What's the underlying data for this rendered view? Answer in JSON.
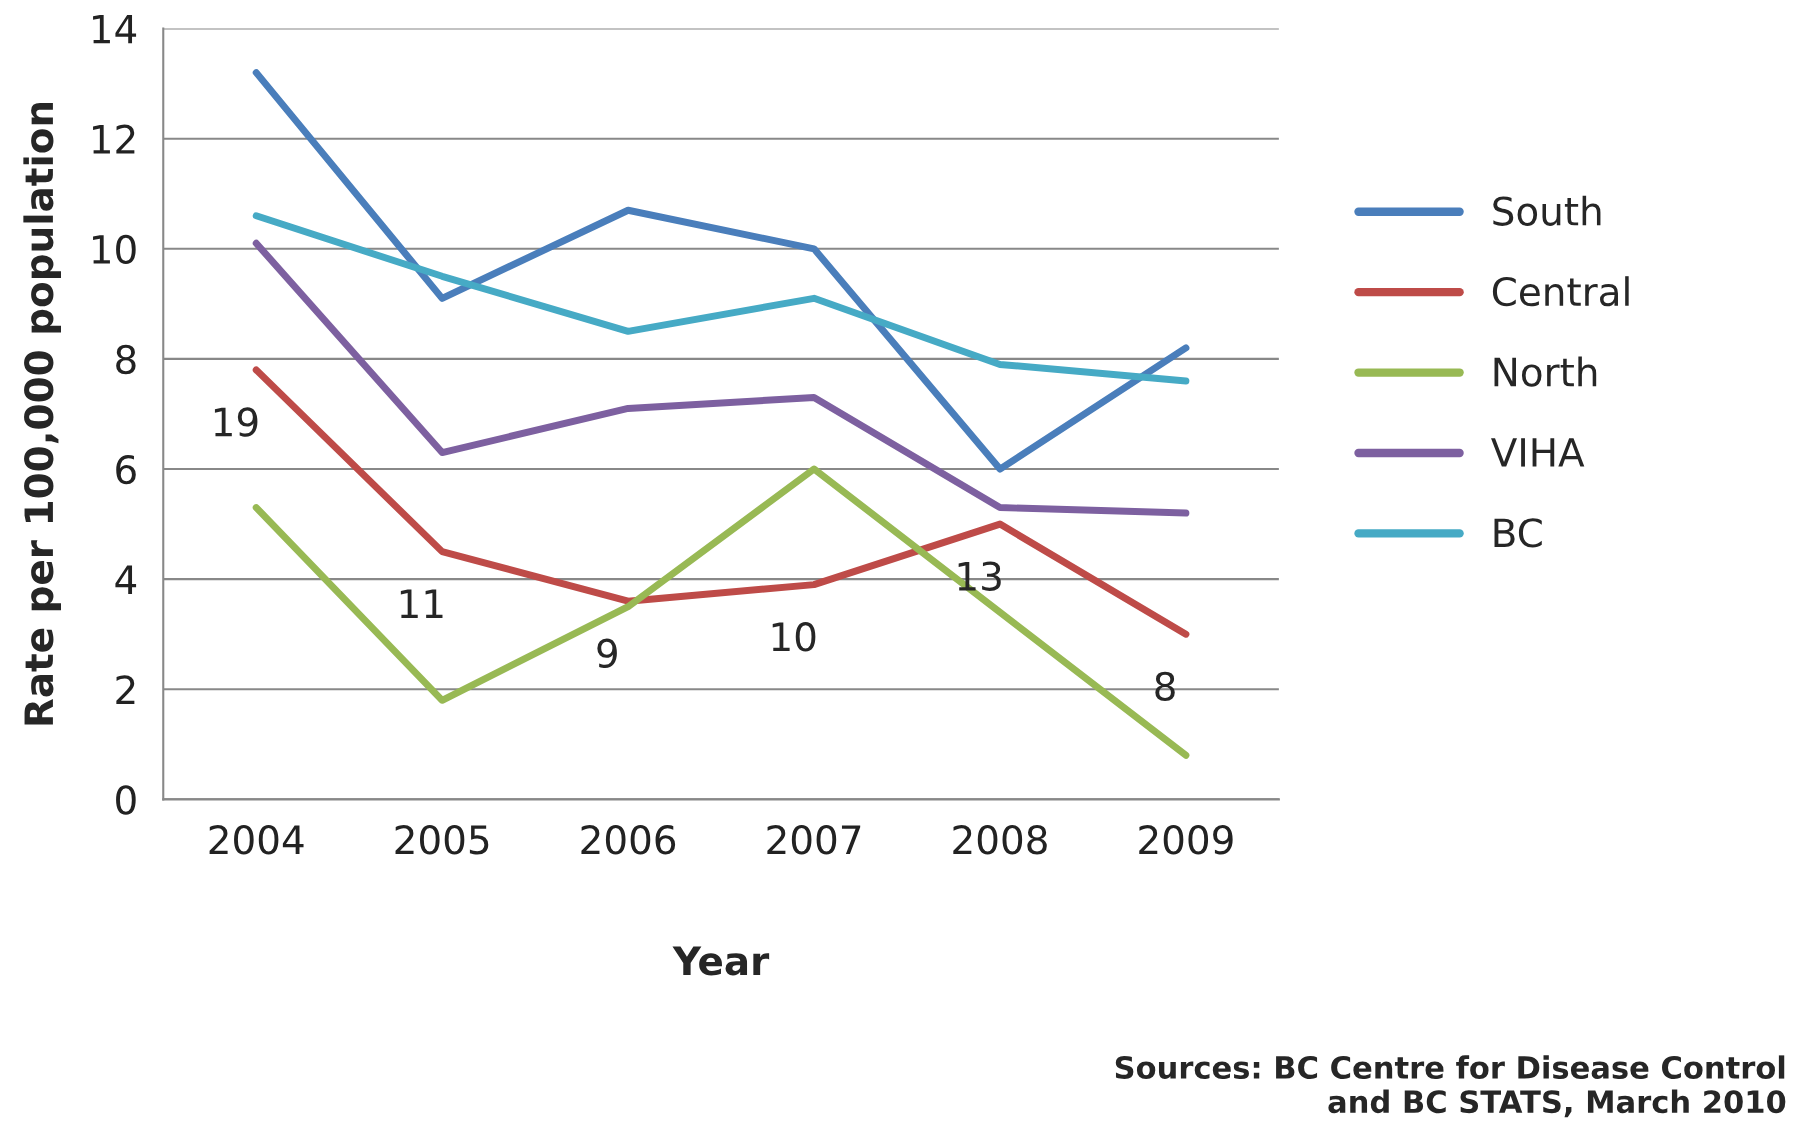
{
  "chart_data": {
    "type": "line",
    "xlabel": "Year",
    "ylabel": "Rate per 100,000 population",
    "categories": [
      "2004",
      "2005",
      "2006",
      "2007",
      "2008",
      "2009"
    ],
    "series": [
      {
        "name": "South",
        "color": "#4a7ebb",
        "values": [
          13.2,
          9.1,
          10.7,
          10.0,
          6.0,
          8.2
        ]
      },
      {
        "name": "Central",
        "color": "#be4b48",
        "values": [
          7.8,
          4.5,
          3.6,
          3.9,
          5.0,
          3.0
        ]
      },
      {
        "name": "North",
        "color": "#98b954",
        "values": [
          5.3,
          1.8,
          3.5,
          6.0,
          3.4,
          0.8
        ]
      },
      {
        "name": "VIHA",
        "color": "#7d60a0",
        "values": [
          10.1,
          6.3,
          7.1,
          7.3,
          5.3,
          5.2
        ]
      },
      {
        "name": "BC",
        "color": "#46aac5",
        "values": [
          10.6,
          9.5,
          8.5,
          9.1,
          7.9,
          7.6
        ]
      }
    ],
    "ylim": [
      0,
      14
    ],
    "yticks": [
      0,
      2,
      4,
      6,
      8,
      10,
      12,
      14
    ],
    "grid": "y",
    "legend": "right",
    "marker": "none",
    "line_style": "solid",
    "annotations": [
      {
        "text": "19",
        "x": "2004",
        "y": 7.8
      },
      {
        "text": "11",
        "x": "2005",
        "y": 4.5
      },
      {
        "text": "9",
        "x": "2006",
        "y": 3.6
      },
      {
        "text": "10",
        "x": "2007",
        "y": 3.9
      },
      {
        "text": "13",
        "x": "2008",
        "y": 5.0
      },
      {
        "text": "8",
        "x": "2009",
        "y": 3.0
      },
      "Sources: BC Centre for Disease Control\nand BC STATS, March 2010"
    ]
  }
}
